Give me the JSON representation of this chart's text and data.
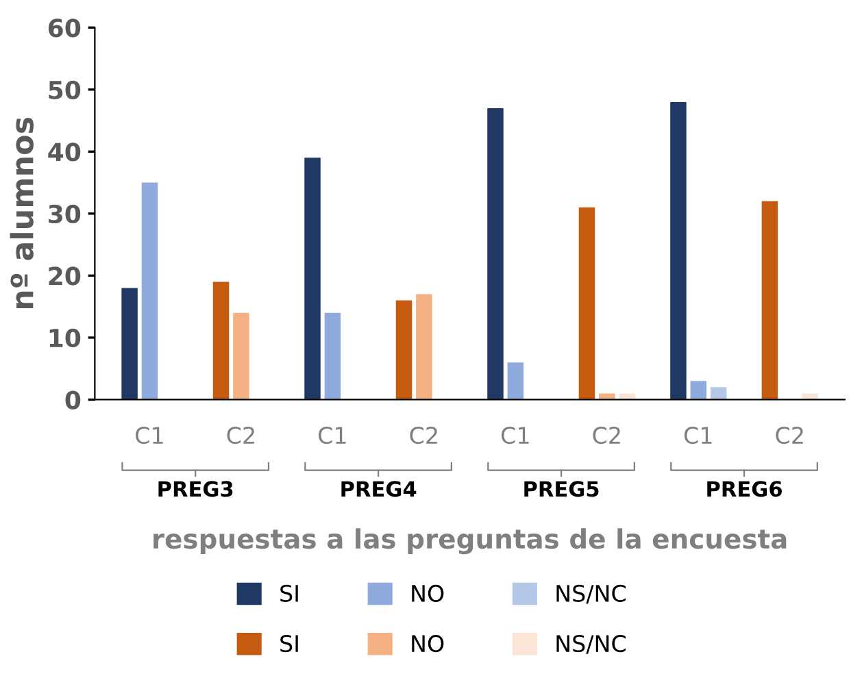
{
  "chart_data": {
    "type": "bar",
    "ylabel": "nº alumnos",
    "xlabel": "respuestas a las preguntas de la encuesta",
    "categories": [
      "C1",
      "C2",
      "C1",
      "C2",
      "C1",
      "C2",
      "C1",
      "C2"
    ],
    "annotations": [
      "PREG3",
      "PREG4",
      "PREG5",
      "PREG6"
    ],
    "series": [
      {
        "name": "SI",
        "color": "#203864",
        "values": [
          18,
          null,
          39,
          null,
          47,
          null,
          48,
          null
        ]
      },
      {
        "name": "NO",
        "color": "#8faadc",
        "values": [
          35,
          null,
          14,
          null,
          6,
          null,
          3,
          null
        ]
      },
      {
        "name": "NS/NC",
        "color": "#b4c7e7",
        "values": [
          0,
          null,
          0,
          null,
          0,
          null,
          2,
          null
        ]
      },
      {
        "name": "SI",
        "color": "#c55a11",
        "values": [
          null,
          19,
          null,
          16,
          null,
          31,
          null,
          32
        ]
      },
      {
        "name": "NO",
        "color": "#f4b183",
        "values": [
          null,
          14,
          null,
          17,
          null,
          1,
          null,
          0
        ]
      },
      {
        "name": "NS/NC",
        "color": "#fbe5d6",
        "values": [
          null,
          0,
          null,
          0,
          null,
          1,
          null,
          1
        ]
      }
    ],
    "ylim": [
      0,
      60
    ],
    "yticks": [
      0,
      10,
      20,
      30,
      40,
      50,
      60
    ],
    "grid": false,
    "legend": "bottom"
  }
}
